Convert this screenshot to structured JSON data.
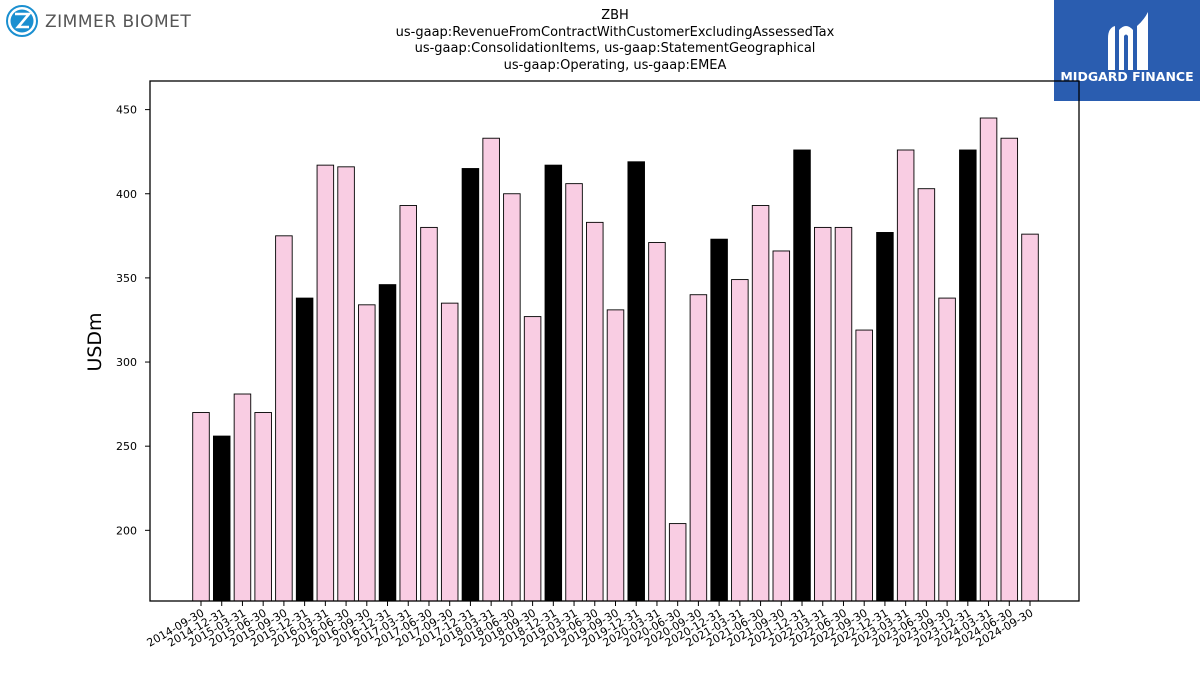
{
  "logo_left": {
    "text": "ZIMMER BIOMET",
    "icon": "zimmer-z-logo"
  },
  "logo_right": {
    "text": "MIDGARD FINANCE",
    "icon": "midgard-m-logo",
    "bg_color": "#2a5db0"
  },
  "chart_data": {
    "type": "bar",
    "title": [
      "ZBH",
      "us-gaap:RevenueFromContractWithCustomerExcludingAssessedTax",
      "us-gaap:ConsolidationItems, us-gaap:StatementGeographical",
      "us-gaap:Operating, us-gaap:EMEA"
    ],
    "xlabel": "",
    "ylabel": "USDm",
    "ylim": [
      158,
      467
    ],
    "yticks": [
      200,
      250,
      300,
      350,
      400,
      450
    ],
    "grid": false,
    "colors": {
      "quarter": "#f9cde3",
      "year_end": "#000000",
      "edge": "#000000"
    },
    "categories": [
      "2014-09-30",
      "2014-12-31",
      "2015-03-31",
      "2015-06-30",
      "2015-09-30",
      "2015-12-31",
      "2016-03-31",
      "2016-06-30",
      "2016-09-30",
      "2016-12-31",
      "2017-03-31",
      "2017-06-30",
      "2017-09-30",
      "2017-12-31",
      "2018-03-31",
      "2018-06-30",
      "2018-09-30",
      "2018-12-31",
      "2019-03-31",
      "2019-06-30",
      "2019-09-30",
      "2019-12-31",
      "2020-03-31",
      "2020-06-30",
      "2020-09-30",
      "2020-12-31",
      "2021-03-31",
      "2021-06-30",
      "2021-09-30",
      "2021-12-31",
      "2022-03-31",
      "2022-06-30",
      "2022-09-30",
      "2022-12-31",
      "2023-03-31",
      "2023-06-30",
      "2023-09-30",
      "2023-12-31",
      "2024-03-31",
      "2024-06-30",
      "2024-09-30"
    ],
    "values": [
      270,
      256,
      281,
      270,
      375,
      338,
      417,
      416,
      334,
      346,
      393,
      380,
      335,
      415,
      433,
      400,
      327,
      417,
      406,
      383,
      331,
      419,
      371,
      204,
      340,
      373,
      349,
      393,
      366,
      426,
      380,
      380,
      319,
      377,
      426,
      403,
      338,
      426,
      445,
      433,
      376
    ],
    "year_end_flags": [
      false,
      true,
      false,
      false,
      false,
      true,
      false,
      false,
      false,
      true,
      false,
      false,
      false,
      true,
      false,
      false,
      false,
      true,
      false,
      false,
      false,
      true,
      false,
      false,
      false,
      true,
      false,
      false,
      false,
      true,
      false,
      false,
      false,
      true,
      false,
      false,
      false,
      true,
      false,
      false,
      false
    ]
  }
}
